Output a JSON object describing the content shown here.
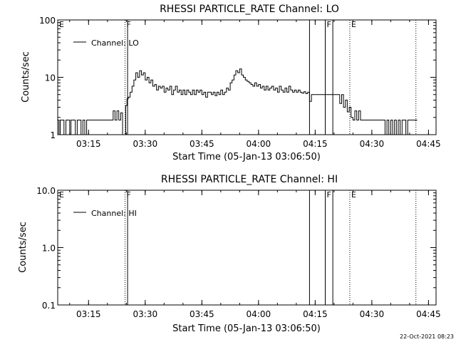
{
  "footer": {
    "date_stamp": "22-Oct-2021 08:23"
  },
  "chart_data": [
    {
      "type": "line",
      "title": "RHESSI PARTICLE_RATE Channel: LO",
      "xlabel": "Start Time (05-Jan-13 03:06:50)",
      "ylabel": "Counts/sec",
      "yscale": "log",
      "ylim": [
        1,
        100
      ],
      "xlim": [
        "03:06:50",
        "04:47:00"
      ],
      "xticks": [
        "03:15",
        "03:30",
        "03:45",
        "04:00",
        "04:15",
        "04:30",
        "04:45"
      ],
      "yticks": [
        "1",
        "10",
        "100"
      ],
      "legend": {
        "entries": [
          "Channel: LO"
        ],
        "placement": "top-left"
      },
      "markers": [
        {
          "label": "E",
          "time": "03:06:50",
          "style": "dotted"
        },
        {
          "label": "F",
          "time": "03:24:40",
          "style": "dotted"
        },
        {
          "label": "",
          "time": "03:25:20",
          "style": "solid"
        },
        {
          "label": "",
          "time": "04:13:30",
          "style": "solid"
        },
        {
          "label": "F",
          "time": "04:17:40",
          "style": "solid"
        },
        {
          "label": "",
          "time": "04:19:40",
          "style": "solid"
        },
        {
          "label": "E",
          "time": "04:24:10",
          "style": "dotted"
        },
        {
          "label": "",
          "time": "04:41:40",
          "style": "dotted"
        }
      ],
      "series": [
        {
          "name": "Channel: LO",
          "points": [
            [
              "03:06:50",
              1.8
            ],
            [
              "03:07:10",
              1
            ],
            [
              "03:07:30",
              1.8
            ],
            [
              "03:08:00",
              1.8
            ],
            [
              "03:08:30",
              1
            ],
            [
              "03:09:00",
              1.8
            ],
            [
              "03:09:30",
              1.8
            ],
            [
              "03:10:00",
              1
            ],
            [
              "03:10:20",
              1.8
            ],
            [
              "03:11:00",
              1.8
            ],
            [
              "03:11:30",
              1
            ],
            [
              "03:12:00",
              1.8
            ],
            [
              "03:12:30",
              1.8
            ],
            [
              "03:13:00",
              1
            ],
            [
              "03:13:30",
              1.8
            ],
            [
              "03:14:00",
              1
            ],
            [
              "03:14:30",
              1.8
            ],
            [
              "03:15:30",
              1.8
            ],
            [
              "03:17:00",
              1.8
            ],
            [
              "03:18:30",
              1.8
            ],
            [
              "03:20:00",
              1.8
            ],
            [
              "03:21:00",
              1.8
            ],
            [
              "03:21:30",
              2.6
            ],
            [
              "03:22:00",
              1.8
            ],
            [
              "03:22:30",
              2.6
            ],
            [
              "03:23:00",
              1.8
            ],
            [
              "03:23:30",
              2.4
            ],
            [
              "03:24:00",
              1
            ],
            [
              "03:24:30",
              1
            ],
            [
              "03:24:50",
              3.2
            ],
            [
              "03:25:10",
              4.2
            ],
            [
              "03:25:30",
              4.5
            ],
            [
              "03:26:00",
              5.5
            ],
            [
              "03:26:30",
              7
            ],
            [
              "03:27:00",
              9
            ],
            [
              "03:27:30",
              12
            ],
            [
              "03:28:00",
              10
            ],
            [
              "03:28:30",
              13
            ],
            [
              "03:29:00",
              11
            ],
            [
              "03:29:30",
              12
            ],
            [
              "03:30:00",
              9
            ],
            [
              "03:30:30",
              10
            ],
            [
              "03:31:00",
              8
            ],
            [
              "03:31:30",
              9
            ],
            [
              "03:32:00",
              7
            ],
            [
              "03:32:30",
              7.5
            ],
            [
              "03:33:00",
              6
            ],
            [
              "03:33:30",
              7
            ],
            [
              "03:34:00",
              6.5
            ],
            [
              "03:34:30",
              7
            ],
            [
              "03:35:00",
              5.5
            ],
            [
              "03:35:30",
              6.5
            ],
            [
              "03:36:00",
              6
            ],
            [
              "03:36:30",
              7
            ],
            [
              "03:37:00",
              5
            ],
            [
              "03:37:30",
              6
            ],
            [
              "03:38:00",
              7
            ],
            [
              "03:38:30",
              5.5
            ],
            [
              "03:39:00",
              6
            ],
            [
              "03:39:30",
              5
            ],
            [
              "03:40:00",
              6
            ],
            [
              "03:40:30",
              5
            ],
            [
              "03:41:00",
              6
            ],
            [
              "03:41:30",
              5.5
            ],
            [
              "03:42:00",
              5
            ],
            [
              "03:42:30",
              6
            ],
            [
              "03:43:00",
              5
            ],
            [
              "03:43:30",
              6
            ],
            [
              "03:44:00",
              5.5
            ],
            [
              "03:44:30",
              6
            ],
            [
              "03:45:00",
              5
            ],
            [
              "03:45:30",
              5.5
            ],
            [
              "03:46:00",
              4.5
            ],
            [
              "03:46:30",
              5.5
            ],
            [
              "03:47:00",
              5.5
            ],
            [
              "03:47:30",
              5
            ],
            [
              "03:48:00",
              5.5
            ],
            [
              "03:48:30",
              4.8
            ],
            [
              "03:49:00",
              5.5
            ],
            [
              "03:49:30",
              5
            ],
            [
              "03:50:00",
              6
            ],
            [
              "03:50:30",
              5
            ],
            [
              "03:51:00",
              5.5
            ],
            [
              "03:51:30",
              6.5
            ],
            [
              "03:52:00",
              6
            ],
            [
              "03:52:30",
              8
            ],
            [
              "03:53:00",
              9
            ],
            [
              "03:53:30",
              11
            ],
            [
              "03:54:00",
              13
            ],
            [
              "03:54:30",
              12
            ],
            [
              "03:55:00",
              14
            ],
            [
              "03:55:30",
              11
            ],
            [
              "03:56:00",
              10
            ],
            [
              "03:56:30",
              9
            ],
            [
              "03:57:00",
              8.5
            ],
            [
              "03:57:30",
              8
            ],
            [
              "03:58:00",
              7.5
            ],
            [
              "03:58:30",
              7
            ],
            [
              "03:59:00",
              8
            ],
            [
              "03:59:30",
              7
            ],
            [
              "04:00:00",
              7.5
            ],
            [
              "04:00:30",
              6.5
            ],
            [
              "04:01:00",
              7
            ],
            [
              "04:01:30",
              6
            ],
            [
              "04:02:00",
              7
            ],
            [
              "04:02:30",
              6
            ],
            [
              "04:03:00",
              6.5
            ],
            [
              "04:03:30",
              7
            ],
            [
              "04:04:00",
              6
            ],
            [
              "04:04:30",
              6.5
            ],
            [
              "04:05:00",
              5.5
            ],
            [
              "04:05:30",
              7
            ],
            [
              "04:06:00",
              6
            ],
            [
              "04:06:30",
              5.5
            ],
            [
              "04:07:00",
              6.5
            ],
            [
              "04:07:30",
              5.5
            ],
            [
              "04:08:00",
              7
            ],
            [
              "04:08:30",
              6
            ],
            [
              "04:09:00",
              5.5
            ],
            [
              "04:09:30",
              6
            ],
            [
              "04:10:00",
              5.5
            ],
            [
              "04:10:30",
              6
            ],
            [
              "04:11:00",
              5.5
            ],
            [
              "04:11:30",
              5.3
            ],
            [
              "04:12:00",
              5.6
            ],
            [
              "04:12:30",
              5.2
            ],
            [
              "04:13:00",
              5.5
            ],
            [
              "04:13:30",
              3.8
            ],
            [
              "04:14:00",
              5
            ],
            [
              "04:15:00",
              5
            ],
            [
              "04:16:00",
              5
            ],
            [
              "04:17:00",
              5
            ],
            [
              "04:18:00",
              5
            ],
            [
              "04:19:00",
              5
            ],
            [
              "04:20:00",
              5
            ],
            [
              "04:21:00",
              5
            ],
            [
              "04:21:30",
              3.5
            ],
            [
              "04:22:00",
              5
            ],
            [
              "04:22:30",
              3
            ],
            [
              "04:23:00",
              4
            ],
            [
              "04:23:30",
              2.5
            ],
            [
              "04:24:00",
              3
            ],
            [
              "04:24:30",
              2
            ],
            [
              "04:25:00",
              1.8
            ],
            [
              "04:25:30",
              2.6
            ],
            [
              "04:26:00",
              1.8
            ],
            [
              "04:26:30",
              2.6
            ],
            [
              "04:27:00",
              1.8
            ],
            [
              "04:28:00",
              1.8
            ],
            [
              "04:29:00",
              1.8
            ],
            [
              "04:30:00",
              1.8
            ],
            [
              "04:31:00",
              1.8
            ],
            [
              "04:32:00",
              1.8
            ],
            [
              "04:33:00",
              1.8
            ],
            [
              "04:33:30",
              1
            ],
            [
              "04:34:00",
              1.8
            ],
            [
              "04:34:30",
              1
            ],
            [
              "04:35:00",
              1.8
            ],
            [
              "04:35:30",
              1
            ],
            [
              "04:36:00",
              1.8
            ],
            [
              "04:36:30",
              1
            ],
            [
              "04:37:00",
              1.8
            ],
            [
              "04:37:30",
              1
            ],
            [
              "04:38:00",
              1.8
            ],
            [
              "04:38:30",
              1.8
            ],
            [
              "04:39:00",
              1
            ],
            [
              "04:39:30",
              1.8
            ],
            [
              "04:40:00",
              1.8
            ],
            [
              "04:41:00",
              1.8
            ],
            [
              "04:42:00",
              1.8
            ]
          ]
        }
      ]
    },
    {
      "type": "line",
      "title": "RHESSI PARTICLE_RATE Channel: HI",
      "xlabel": "Start Time (05-Jan-13 03:06:50)",
      "ylabel": "Counts/sec",
      "yscale": "log",
      "ylim": [
        0.1,
        10
      ],
      "xlim": [
        "03:06:50",
        "04:47:00"
      ],
      "xticks": [
        "03:15",
        "03:30",
        "03:45",
        "04:00",
        "04:15",
        "04:30",
        "04:45"
      ],
      "yticks": [
        "0.1",
        "1.0",
        "10.0"
      ],
      "legend": {
        "entries": [
          "Channel: HI"
        ],
        "placement": "top-left"
      },
      "markers": [
        {
          "label": "E",
          "time": "03:06:50",
          "style": "dotted"
        },
        {
          "label": "F",
          "time": "03:24:40",
          "style": "dotted"
        },
        {
          "label": "",
          "time": "03:25:20",
          "style": "solid"
        },
        {
          "label": "",
          "time": "04:13:30",
          "style": "solid"
        },
        {
          "label": "F",
          "time": "04:17:40",
          "style": "solid"
        },
        {
          "label": "",
          "time": "04:19:40",
          "style": "solid"
        },
        {
          "label": "E",
          "time": "04:24:10",
          "style": "dotted"
        },
        {
          "label": "",
          "time": "04:41:40",
          "style": "dotted"
        }
      ],
      "series": [
        {
          "name": "Channel: HI",
          "points": []
        }
      ]
    }
  ]
}
